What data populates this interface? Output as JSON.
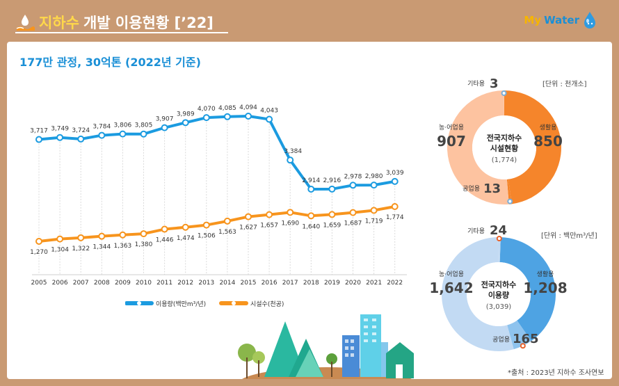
{
  "header": {
    "title_highlight": "지하수",
    "title_rest": "개발 이용현황 [’22]",
    "logo_my": "My",
    "logo_water": "Water"
  },
  "subtitle": "177만 관정, 30억톤 (2022년 기준)",
  "chart_data": [
    {
      "type": "line",
      "x": [
        "2005",
        "2006",
        "2007",
        "2008",
        "2009",
        "2010",
        "2011",
        "2012",
        "2013",
        "2014",
        "2015",
        "2016",
        "2017",
        "2018",
        "2019",
        "2020",
        "2021",
        "2022"
      ],
      "series": [
        {
          "name": "이용량(백만m³/년)",
          "color": "#1b9be0",
          "values": [
            3717,
            3749,
            3724,
            3784,
            3806,
            3805,
            3907,
            3989,
            4070,
            4085,
            4094,
            4043,
            3384,
            2914,
            2916,
            2978,
            2980,
            3039
          ],
          "labels": [
            "3,717",
            "3,749",
            "3,724",
            "3,784",
            "3,806",
            "3,805",
            "3,907",
            "3,989",
            "4,070",
            "4,085",
            "4,094",
            "4,043",
            "3,384",
            "2,914",
            "2,916",
            "2,978",
            "2,980",
            "3,039"
          ]
        },
        {
          "name": "시설수(천공)",
          "color": "#f7941d",
          "values": [
            1270,
            1304,
            1322,
            1344,
            1363,
            1380,
            1446,
            1474,
            1506,
            1563,
            1627,
            1657,
            1690,
            1640,
            1659,
            1687,
            1719,
            1774
          ],
          "labels": [
            "1,270",
            "1,304",
            "1,322",
            "1,344",
            "1,363",
            "1,380",
            "1,446",
            "1,474",
            "1,506",
            "1,563",
            "1,627",
            "1,657",
            "1,690",
            "1,640",
            "1,659",
            "1,687",
            "1,719",
            "1,774"
          ]
        }
      ],
      "legend_position": "bottom"
    },
    {
      "type": "pie",
      "title": "전국지하수 시설현황",
      "title_lines": [
        "전국지하수",
        "시설현황"
      ],
      "center_total": "(1,774)",
      "unit": "[단위 : 천개소]",
      "slices": [
        {
          "label": "생활용",
          "value": 850,
          "display": "850",
          "color": "#f5852b"
        },
        {
          "label": "공업용",
          "value": 13,
          "display": "13",
          "color": "#f5852b"
        },
        {
          "label": "농·어업용",
          "value": 907,
          "display": "907",
          "color": "#fdc3a0"
        },
        {
          "label": "기타용",
          "value": 3,
          "display": "3",
          "color": "#fdc3a0"
        }
      ]
    },
    {
      "type": "pie",
      "title": "전국지하수 이용량",
      "title_lines": [
        "전국지하수",
        "이용량"
      ],
      "center_total": "(3,039)",
      "unit": "[단위 : 백만m³/년]",
      "slices": [
        {
          "label": "생활용",
          "value": 1208,
          "display": "1,208",
          "color": "#4ea3e3"
        },
        {
          "label": "공업용",
          "value": 165,
          "display": "165",
          "color": "#8ec3ee"
        },
        {
          "label": "농·어업용",
          "value": 1642,
          "display": "1,642",
          "color": "#c2daf3"
        },
        {
          "label": "기타용",
          "value": 24,
          "display": "24",
          "color": "#c2daf3"
        }
      ]
    }
  ],
  "source_note": "*출처 : 2023년 지하수 조사연보"
}
